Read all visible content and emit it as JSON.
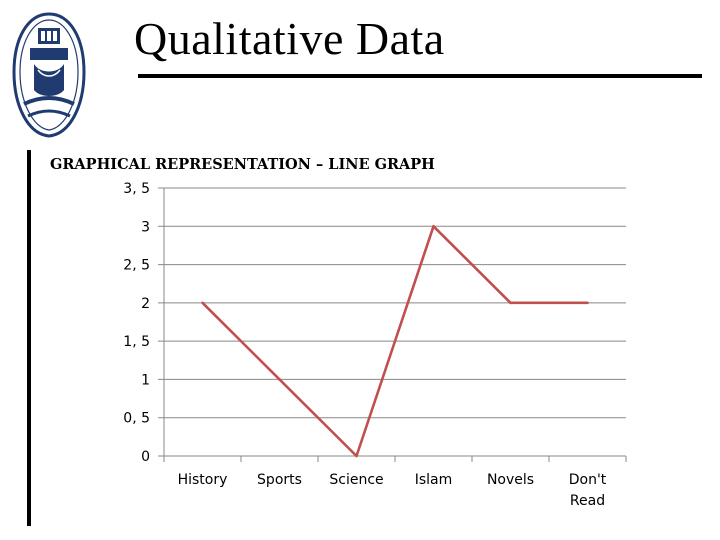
{
  "slide": {
    "title": "Qualitative Data",
    "subtitle": "GRAPHICAL REPRESENTATION – LINE GRAPH"
  },
  "logo": {
    "icon": "university-seal-icon",
    "primary_color": "#1f3b6f"
  },
  "chart_data": {
    "type": "line",
    "title": "",
    "xlabel": "",
    "ylabel": "",
    "categories": [
      "History",
      "Sports",
      "Science",
      "Islam",
      "Novels",
      "Don't Read"
    ],
    "series": [
      {
        "values": [
          2,
          1,
          0,
          3,
          2,
          2
        ],
        "color": "#c0504d"
      }
    ],
    "ylim": [
      0,
      3.5
    ],
    "yticks": [
      0,
      0.5,
      1,
      1.5,
      2,
      2.5,
      3,
      3.5
    ],
    "ytick_labels": [
      "0",
      "0, 5",
      "1",
      "1, 5",
      "2",
      "2, 5",
      "3",
      "3, 5"
    ],
    "grid": true,
    "gridline_color": "#888888",
    "legend": "none"
  }
}
